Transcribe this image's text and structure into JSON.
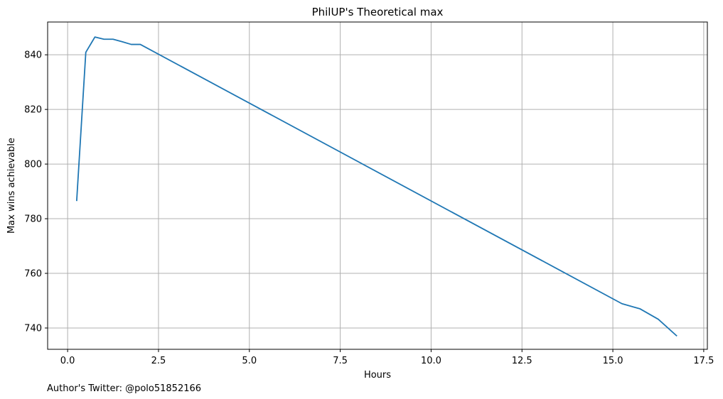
{
  "chart_data": {
    "type": "line",
    "title": "PhilUP's Theoretical max",
    "xlabel": "Hours",
    "ylabel": "Max wins achievable",
    "xlim": [
      -0.55,
      17.6
    ],
    "ylim": [
      732.2,
      852
    ],
    "x_ticks": [
      0.0,
      2.5,
      5.0,
      7.5,
      10.0,
      12.5,
      15.0,
      17.5
    ],
    "x_tick_labels": [
      "0.0",
      "2.5",
      "5.0",
      "7.5",
      "10.0",
      "12.5",
      "15.0",
      "17.5"
    ],
    "y_ticks": [
      740,
      760,
      780,
      800,
      820,
      840
    ],
    "y_tick_labels": [
      "740",
      "760",
      "780",
      "800",
      "820",
      "840"
    ],
    "grid": true,
    "series": [
      {
        "color": "#1f77b4",
        "x": [
          0.25,
          0.5,
          0.75,
          1.0,
          1.25,
          1.5,
          1.75,
          2.0,
          15.25,
          15.75,
          16.25,
          16.75
        ],
        "y": [
          786.7,
          840.9,
          846.5,
          845.7,
          845.7,
          844.8,
          843.8,
          843.8,
          748.9,
          747.0,
          743.2,
          737.2
        ]
      }
    ]
  },
  "footer": {
    "text": "Author's Twitter: @polo51852166"
  }
}
